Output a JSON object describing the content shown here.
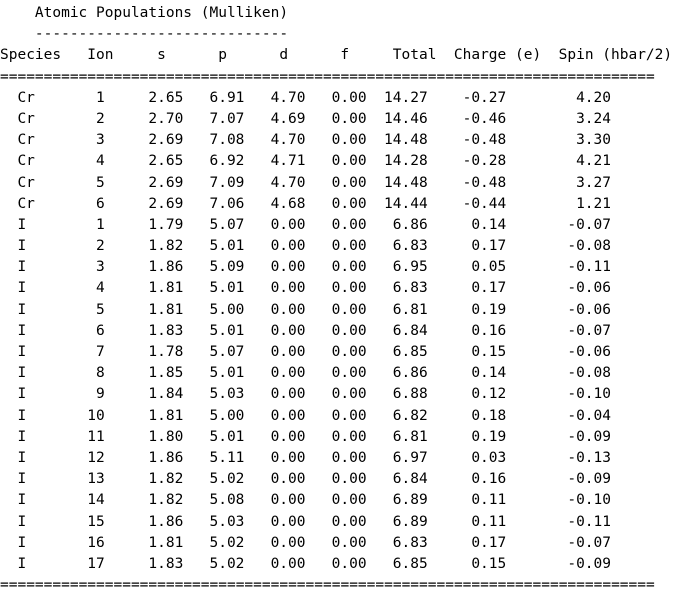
{
  "title": "Atomic Populations (Mulliken)",
  "title_underline": "-----------------------------",
  "separator": "===========================================================================",
  "columns": [
    "Species",
    "Ion",
    "s",
    "p",
    "d",
    "f",
    "Total",
    "Charge (e)",
    "Spin (hbar/2)"
  ],
  "rows": [
    {
      "species": "Cr",
      "ion": "1",
      "s": "2.65",
      "p": "6.91",
      "d": "4.70",
      "f": "0.00",
      "total": "14.27",
      "charge": "-0.27",
      "spin": "4.20"
    },
    {
      "species": "Cr",
      "ion": "2",
      "s": "2.70",
      "p": "7.07",
      "d": "4.69",
      "f": "0.00",
      "total": "14.46",
      "charge": "-0.46",
      "spin": "3.24"
    },
    {
      "species": "Cr",
      "ion": "3",
      "s": "2.69",
      "p": "7.08",
      "d": "4.70",
      "f": "0.00",
      "total": "14.48",
      "charge": "-0.48",
      "spin": "3.30"
    },
    {
      "species": "Cr",
      "ion": "4",
      "s": "2.65",
      "p": "6.92",
      "d": "4.71",
      "f": "0.00",
      "total": "14.28",
      "charge": "-0.28",
      "spin": "4.21"
    },
    {
      "species": "Cr",
      "ion": "5",
      "s": "2.69",
      "p": "7.09",
      "d": "4.70",
      "f": "0.00",
      "total": "14.48",
      "charge": "-0.48",
      "spin": "3.27"
    },
    {
      "species": "Cr",
      "ion": "6",
      "s": "2.69",
      "p": "7.06",
      "d": "4.68",
      "f": "0.00",
      "total": "14.44",
      "charge": "-0.44",
      "spin": "1.21"
    },
    {
      "species": "I",
      "ion": "1",
      "s": "1.79",
      "p": "5.07",
      "d": "0.00",
      "f": "0.00",
      "total": "6.86",
      "charge": "0.14",
      "spin": "-0.07"
    },
    {
      "species": "I",
      "ion": "2",
      "s": "1.82",
      "p": "5.01",
      "d": "0.00",
      "f": "0.00",
      "total": "6.83",
      "charge": "0.17",
      "spin": "-0.08"
    },
    {
      "species": "I",
      "ion": "3",
      "s": "1.86",
      "p": "5.09",
      "d": "0.00",
      "f": "0.00",
      "total": "6.95",
      "charge": "0.05",
      "spin": "-0.11"
    },
    {
      "species": "I",
      "ion": "4",
      "s": "1.81",
      "p": "5.01",
      "d": "0.00",
      "f": "0.00",
      "total": "6.83",
      "charge": "0.17",
      "spin": "-0.06"
    },
    {
      "species": "I",
      "ion": "5",
      "s": "1.81",
      "p": "5.00",
      "d": "0.00",
      "f": "0.00",
      "total": "6.81",
      "charge": "0.19",
      "spin": "-0.06"
    },
    {
      "species": "I",
      "ion": "6",
      "s": "1.83",
      "p": "5.01",
      "d": "0.00",
      "f": "0.00",
      "total": "6.84",
      "charge": "0.16",
      "spin": "-0.07"
    },
    {
      "species": "I",
      "ion": "7",
      "s": "1.78",
      "p": "5.07",
      "d": "0.00",
      "f": "0.00",
      "total": "6.85",
      "charge": "0.15",
      "spin": "-0.06"
    },
    {
      "species": "I",
      "ion": "8",
      "s": "1.85",
      "p": "5.01",
      "d": "0.00",
      "f": "0.00",
      "total": "6.86",
      "charge": "0.14",
      "spin": "-0.08"
    },
    {
      "species": "I",
      "ion": "9",
      "s": "1.84",
      "p": "5.03",
      "d": "0.00",
      "f": "0.00",
      "total": "6.88",
      "charge": "0.12",
      "spin": "-0.10"
    },
    {
      "species": "I",
      "ion": "10",
      "s": "1.81",
      "p": "5.00",
      "d": "0.00",
      "f": "0.00",
      "total": "6.82",
      "charge": "0.18",
      "spin": "-0.04"
    },
    {
      "species": "I",
      "ion": "11",
      "s": "1.80",
      "p": "5.01",
      "d": "0.00",
      "f": "0.00",
      "total": "6.81",
      "charge": "0.19",
      "spin": "-0.09"
    },
    {
      "species": "I",
      "ion": "12",
      "s": "1.86",
      "p": "5.11",
      "d": "0.00",
      "f": "0.00",
      "total": "6.97",
      "charge": "0.03",
      "spin": "-0.13"
    },
    {
      "species": "I",
      "ion": "13",
      "s": "1.82",
      "p": "5.02",
      "d": "0.00",
      "f": "0.00",
      "total": "6.84",
      "charge": "0.16",
      "spin": "-0.09"
    },
    {
      "species": "I",
      "ion": "14",
      "s": "1.82",
      "p": "5.08",
      "d": "0.00",
      "f": "0.00",
      "total": "6.89",
      "charge": "0.11",
      "spin": "-0.10"
    },
    {
      "species": "I",
      "ion": "15",
      "s": "1.86",
      "p": "5.03",
      "d": "0.00",
      "f": "0.00",
      "total": "6.89",
      "charge": "0.11",
      "spin": "-0.11"
    },
    {
      "species": "I",
      "ion": "16",
      "s": "1.81",
      "p": "5.02",
      "d": "0.00",
      "f": "0.00",
      "total": "6.83",
      "charge": "0.17",
      "spin": "-0.07"
    },
    {
      "species": "I",
      "ion": "17",
      "s": "1.83",
      "p": "5.02",
      "d": "0.00",
      "f": "0.00",
      "total": "6.85",
      "charge": "0.15",
      "spin": "-0.09"
    }
  ]
}
